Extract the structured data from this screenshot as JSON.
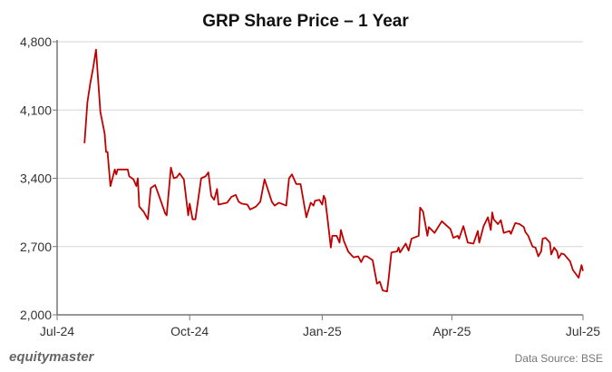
{
  "chart_data": {
    "type": "line",
    "title": "GRP Share Price – 1 Year",
    "xlabel": "",
    "ylabel": "",
    "xlim": [
      "2024-07-01",
      "2025-07-01"
    ],
    "ylim": [
      2000,
      4800
    ],
    "x_ticks": [
      {
        "date": "2024-07-01",
        "label": "Jul-24"
      },
      {
        "date": "2024-10-01",
        "label": "Oct-24"
      },
      {
        "date": "2025-01-01",
        "label": "Jan-25"
      },
      {
        "date": "2025-04-01",
        "label": "Apr-25"
      },
      {
        "date": "2025-07-01",
        "label": "Jul-25"
      }
    ],
    "y_ticks": [
      {
        "value": 2000,
        "label": "2,000"
      },
      {
        "value": 2700,
        "label": "2,700"
      },
      {
        "value": 3400,
        "label": "3,400"
      },
      {
        "value": 4100,
        "label": "4,100"
      },
      {
        "value": 4800,
        "label": "4,800"
      }
    ],
    "grid": "horizontal",
    "line_color": "#C00000",
    "series": [
      {
        "x": [
          "2024-07-20",
          "2024-07-22",
          "2024-07-24",
          "2024-07-26",
          "2024-07-28",
          "2024-07-31",
          "2024-08-03",
          "2024-08-04",
          "2024-08-05",
          "2024-08-07",
          "2024-08-10",
          "2024-08-11",
          "2024-08-12",
          "2024-08-19",
          "2024-08-20",
          "2024-08-23",
          "2024-08-25",
          "2024-08-26",
          "2024-08-27",
          "2024-08-30",
          "2024-09-02",
          "2024-09-04",
          "2024-09-07",
          "2024-09-10",
          "2024-09-14",
          "2024-09-15",
          "2024-09-18",
          "2024-09-20",
          "2024-09-22",
          "2024-09-24",
          "2024-09-27",
          "2024-09-30",
          "2024-10-01",
          "2024-10-03",
          "2024-10-05",
          "2024-10-09",
          "2024-10-12",
          "2024-10-14",
          "2024-10-16",
          "2024-10-18",
          "2024-10-20",
          "2024-10-21",
          "2024-10-27",
          "2024-10-30",
          "2024-11-02",
          "2024-11-04",
          "2024-11-06",
          "2024-11-10",
          "2024-11-12",
          "2024-11-16",
          "2024-11-19",
          "2024-11-22",
          "2024-11-27",
          "2024-11-29",
          "2024-12-02",
          "2024-12-07",
          "2024-12-09",
          "2024-12-11",
          "2024-12-14",
          "2024-12-17",
          "2024-12-21",
          "2024-12-24",
          "2024-12-26",
          "2024-12-27",
          "2024-12-30",
          "2025-01-01",
          "2025-01-02",
          "2025-01-03",
          "2025-01-05",
          "2025-01-07",
          "2025-01-08",
          "2025-01-11",
          "2025-01-13",
          "2025-01-14",
          "2025-01-16",
          "2025-01-19",
          "2025-01-22",
          "2025-01-23",
          "2025-01-26",
          "2025-01-28",
          "2025-01-30",
          "2025-02-01",
          "2025-02-05",
          "2025-02-08",
          "2025-02-10",
          "2025-02-12",
          "2025-02-15",
          "2025-02-16",
          "2025-02-18",
          "2025-02-22",
          "2025-02-23",
          "2025-02-24",
          "2025-02-28",
          "2025-03-02",
          "2025-03-04",
          "2025-03-09",
          "2025-03-10",
          "2025-03-12",
          "2025-03-15",
          "2025-03-16",
          "2025-03-20",
          "2025-03-25",
          "2025-03-31",
          "2025-04-02",
          "2025-04-05",
          "2025-04-06",
          "2025-04-09",
          "2025-04-12",
          "2025-04-16",
          "2025-04-19",
          "2025-04-20",
          "2025-04-23",
          "2025-04-26",
          "2025-04-28",
          "2025-04-29",
          "2025-04-30",
          "2025-05-03",
          "2025-05-05",
          "2025-05-07",
          "2025-05-11",
          "2025-05-12",
          "2025-05-15",
          "2025-05-18",
          "2025-05-21",
          "2025-05-22",
          "2025-05-24",
          "2025-05-27",
          "2025-05-29",
          "2025-05-31",
          "2025-06-02",
          "2025-06-03",
          "2025-06-05",
          "2025-06-08",
          "2025-06-09",
          "2025-06-11",
          "2025-06-13",
          "2025-06-14",
          "2025-06-16",
          "2025-06-18",
          "2025-06-22",
          "2025-06-24",
          "2025-06-28",
          "2025-06-30",
          "2025-07-01"
        ],
        "y": [
          3760,
          4180,
          4370,
          4530,
          4720,
          4080,
          3860,
          3670,
          3670,
          3320,
          3490,
          3440,
          3490,
          3490,
          3420,
          3390,
          3320,
          3400,
          3110,
          3060,
          2980,
          3300,
          3330,
          3210,
          3040,
          3020,
          3510,
          3400,
          3410,
          3450,
          3390,
          3020,
          3140,
          2980,
          2980,
          3400,
          3420,
          3460,
          3220,
          3180,
          3290,
          3130,
          3150,
          3210,
          3230,
          3160,
          3140,
          3130,
          3080,
          3110,
          3160,
          3390,
          3160,
          3120,
          3150,
          3120,
          3400,
          3440,
          3340,
          3340,
          3000,
          3150,
          3120,
          3170,
          3180,
          3130,
          3220,
          3190,
          2950,
          2690,
          2810,
          2810,
          2740,
          2870,
          2760,
          2650,
          2600,
          2590,
          2600,
          2540,
          2600,
          2600,
          2560,
          2320,
          2340,
          2250,
          2240,
          2360,
          2640,
          2650,
          2690,
          2640,
          2730,
          2660,
          2780,
          2810,
          3100,
          3060,
          2810,
          2900,
          2840,
          2960,
          2880,
          2790,
          2810,
          2780,
          2910,
          2740,
          2730,
          2860,
          2740,
          2910,
          3000,
          2870,
          3050,
          2980,
          2930,
          2970,
          2840,
          2860,
          2830,
          2940,
          2930,
          2900,
          2850,
          2810,
          2700,
          2690,
          2600,
          2650,
          2780,
          2790,
          2740,
          2620,
          2690,
          2650,
          2580,
          2630,
          2620,
          2550,
          2460,
          2380,
          2510,
          2450
        ]
      }
    ]
  },
  "footer": {
    "brand": "equitymaster",
    "source": "Data Source: BSE"
  }
}
